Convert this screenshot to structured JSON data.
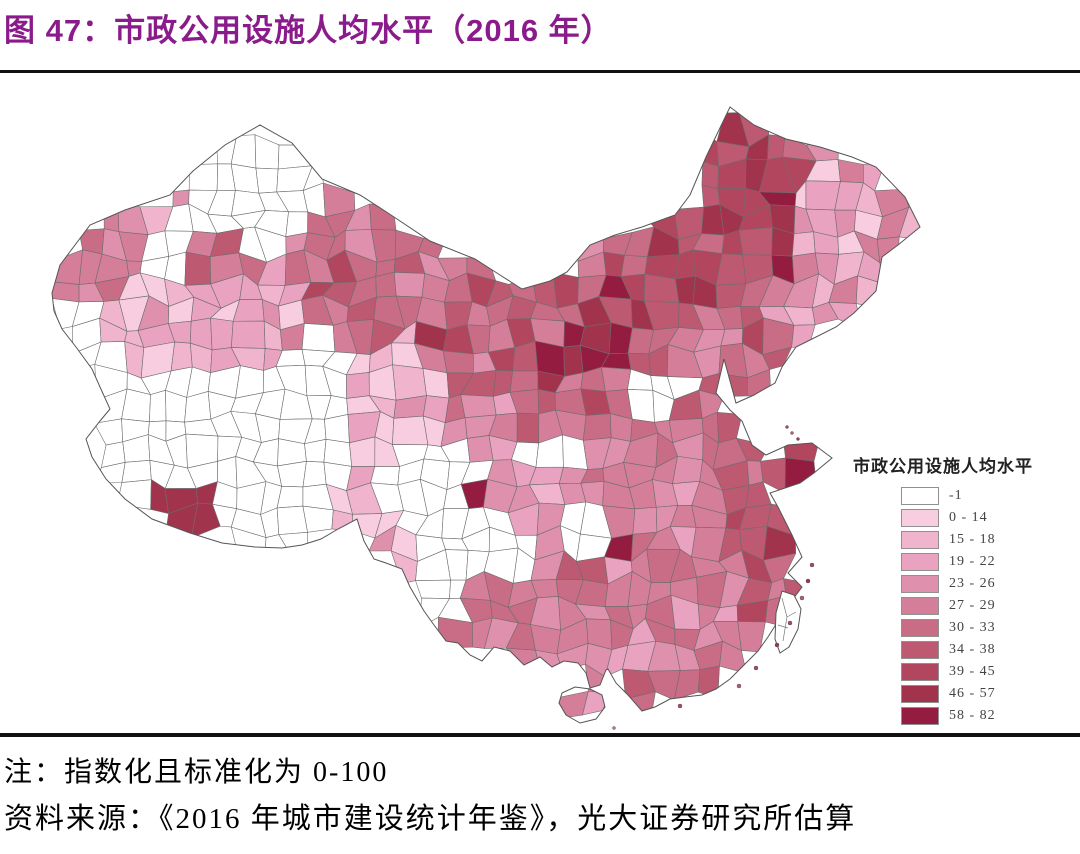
{
  "title": "图 47：市政公用设施人均水平（2016 年）",
  "title_color": "#8A1B8A",
  "notes": {
    "note1": "注：指数化且标准化为 0-100",
    "note2": "资料来源：《2016 年城市建设统计年鉴》，光大证券研究所估算"
  },
  "chart_data": {
    "type": "heatmap",
    "subtype": "choropleth-map",
    "geography": "China, prefecture-level regions",
    "year": "2016",
    "title": "市政公用设施人均水平（2016 年）",
    "legend": {
      "title": "市政公用设施人均水平",
      "position": "right",
      "classes": [
        {
          "label": "-1",
          "color": "#FFFFFF"
        },
        {
          "label": "0 - 14",
          "color": "#F8CDDF"
        },
        {
          "label": "15 - 18",
          "color": "#F1B4CD"
        },
        {
          "label": "19 - 22",
          "color": "#E9A2BF"
        },
        {
          "label": "23 - 26",
          "color": "#DF90AC"
        },
        {
          "label": "27 - 29",
          "color": "#D47E99"
        },
        {
          "label": "30 - 33",
          "color": "#C96C85"
        },
        {
          "label": "34 - 38",
          "color": "#BD5971"
        },
        {
          "label": "39 - 45",
          "color": "#B1465E"
        },
        {
          "label": "46 - 57",
          "color": "#A2334D"
        },
        {
          "label": "58 - 82",
          "color": "#951C41"
        }
      ]
    },
    "map": {
      "cell_size": 23,
      "border_color": "#6d6d6d",
      "outline_color": "#555555",
      "mainland": [
        [
          30,
          170
        ],
        [
          60,
          130
        ],
        [
          95,
          115
        ],
        [
          140,
          100
        ],
        [
          163,
          76
        ],
        [
          195,
          50
        ],
        [
          230,
          30
        ],
        [
          262,
          48
        ],
        [
          292,
          84
        ],
        [
          330,
          100
        ],
        [
          358,
          118
        ],
        [
          400,
          146
        ],
        [
          445,
          164
        ],
        [
          470,
          180
        ],
        [
          492,
          194
        ],
        [
          520,
          186
        ],
        [
          537,
          177
        ],
        [
          560,
          150
        ],
        [
          585,
          140
        ],
        [
          612,
          132
        ],
        [
          645,
          120
        ],
        [
          660,
          100
        ],
        [
          676,
          62
        ],
        [
          700,
          12
        ],
        [
          724,
          30
        ],
        [
          756,
          44
        ],
        [
          790,
          52
        ],
        [
          822,
          62
        ],
        [
          846,
          72
        ],
        [
          875,
          102
        ],
        [
          890,
          132
        ],
        [
          868,
          150
        ],
        [
          852,
          162
        ],
        [
          846,
          196
        ],
        [
          824,
          218
        ],
        [
          806,
          232
        ],
        [
          786,
          242
        ],
        [
          766,
          252
        ],
        [
          752,
          272
        ],
        [
          745,
          288
        ],
        [
          724,
          300
        ],
        [
          706,
          308
        ],
        [
          700,
          286
        ],
        [
          694,
          264
        ],
        [
          686,
          298
        ],
        [
          700,
          315
        ],
        [
          712,
          326
        ],
        [
          722,
          350
        ],
        [
          736,
          360
        ],
        [
          758,
          350
        ],
        [
          782,
          348
        ],
        [
          802,
          363
        ],
        [
          784,
          378
        ],
        [
          770,
          388
        ],
        [
          752,
          394
        ],
        [
          740,
          398
        ],
        [
          748,
          412
        ],
        [
          762,
          440
        ],
        [
          772,
          462
        ],
        [
          758,
          478
        ],
        [
          772,
          492
        ],
        [
          760,
          508
        ],
        [
          748,
          526
        ],
        [
          738,
          542
        ],
        [
          728,
          556
        ],
        [
          712,
          572
        ],
        [
          700,
          584
        ],
        [
          686,
          594
        ],
        [
          672,
          600
        ],
        [
          655,
          602
        ],
        [
          640,
          604
        ],
        [
          625,
          612
        ],
        [
          612,
          616
        ],
        [
          598,
          600
        ],
        [
          586,
          588
        ],
        [
          578,
          574
        ],
        [
          576,
          575
        ],
        [
          570,
          590
        ],
        [
          560,
          593
        ],
        [
          556,
          578
        ],
        [
          548,
          568
        ],
        [
          534,
          566
        ],
        [
          522,
          572
        ],
        [
          510,
          562
        ],
        [
          494,
          570
        ],
        [
          480,
          556
        ],
        [
          464,
          552
        ],
        [
          452,
          566
        ],
        [
          440,
          560
        ],
        [
          428,
          548
        ],
        [
          416,
          546
        ],
        [
          404,
          530
        ],
        [
          394,
          516
        ],
        [
          380,
          492
        ],
        [
          372,
          474
        ],
        [
          356,
          468
        ],
        [
          344,
          464
        ],
        [
          334,
          446
        ],
        [
          327,
          424
        ],
        [
          308,
          434
        ],
        [
          291,
          444
        ],
        [
          272,
          450
        ],
        [
          252,
          453
        ],
        [
          225,
          452
        ],
        [
          192,
          448
        ],
        [
          160,
          438
        ],
        [
          122,
          424
        ],
        [
          95,
          404
        ],
        [
          76,
          384
        ],
        [
          62,
          362
        ],
        [
          56,
          344
        ],
        [
          70,
          326
        ],
        [
          80,
          314
        ],
        [
          70,
          292
        ],
        [
          62,
          274
        ],
        [
          46,
          252
        ],
        [
          32,
          234
        ],
        [
          24,
          216
        ],
        [
          22,
          198
        ],
        [
          26,
          184
        ]
      ],
      "hainan": [
        [
          532,
          598
        ],
        [
          545,
          592
        ],
        [
          560,
          594
        ],
        [
          572,
          600
        ],
        [
          575,
          612
        ],
        [
          566,
          624
        ],
        [
          550,
          628
        ],
        [
          536,
          620
        ],
        [
          529,
          608
        ]
      ],
      "taiwan": [
        [
          752,
          496
        ],
        [
          764,
          500
        ],
        [
          771,
          514
        ],
        [
          768,
          534
        ],
        [
          759,
          552
        ],
        [
          750,
          558
        ],
        [
          745,
          544
        ],
        [
          746,
          518
        ]
      ],
      "taiwan_lines": [
        [
          [
            752,
            503
          ],
          [
            757,
            522
          ],
          [
            753,
            546
          ]
        ],
        [
          [
            757,
            522
          ],
          [
            766,
            517
          ]
        ],
        [
          [
            748,
            530
          ],
          [
            758,
            533
          ]
        ]
      ],
      "islands": [
        [
          782,
          470,
          2,
          8
        ],
        [
          778,
          486,
          2,
          9
        ],
        [
          772,
          503,
          2,
          7
        ],
        [
          760,
          528,
          2,
          8
        ],
        [
          747,
          550,
          2,
          9
        ],
        [
          726,
          573,
          2,
          8
        ],
        [
          709,
          591,
          2,
          7
        ],
        [
          650,
          611,
          2,
          8
        ],
        [
          757,
          332,
          1.5,
          8
        ],
        [
          762,
          338,
          1.5,
          7
        ],
        [
          768,
          344,
          1.5,
          9
        ],
        [
          584,
          633,
          1.5,
          6
        ]
      ],
      "zone_format": "[name, x, y, radius, class_index]",
      "zones": [
        [
          "altay-white",
          205,
          95,
          80,
          0
        ],
        [
          "tacheng-light",
          148,
          100,
          22,
          2
        ],
        [
          "karamay-dark",
          205,
          112,
          13,
          10
        ],
        [
          "bole-light",
          118,
          132,
          16,
          3
        ],
        [
          "ili-medium",
          55,
          160,
          40,
          5
        ],
        [
          "urumqi-changji",
          195,
          158,
          34,
          6
        ],
        [
          "turpan-light",
          248,
          185,
          24,
          3
        ],
        [
          "hami",
          312,
          172,
          55,
          6
        ],
        [
          "aksu-light",
          130,
          248,
          50,
          2
        ],
        [
          "korla-light",
          218,
          228,
          42,
          3
        ],
        [
          "kashgar-hotan-white",
          92,
          315,
          78,
          0
        ],
        [
          "qiemo-white",
          272,
          318,
          60,
          0
        ],
        [
          "qaidam-light",
          352,
          315,
          48,
          2
        ],
        [
          "yushu-white",
          398,
          398,
          48,
          0
        ],
        [
          "qinghai-east",
          465,
          330,
          32,
          4
        ],
        [
          "gansu-corridor",
          458,
          272,
          40,
          6
        ],
        [
          "jiayuguan-dark",
          420,
          243,
          14,
          9
        ],
        [
          "alxa",
          498,
          215,
          45,
          6
        ],
        [
          "lanzhou",
          520,
          322,
          24,
          6
        ],
        [
          "gansu-south-white",
          520,
          356,
          24,
          0
        ],
        [
          "ningxia",
          555,
          302,
          20,
          6
        ],
        [
          "ordos-wuhai-dark",
          535,
          256,
          28,
          10
        ],
        [
          "baotou-dark",
          592,
          212,
          22,
          9
        ],
        [
          "hohhot",
          628,
          248,
          18,
          7
        ],
        [
          "xilingol-dark",
          642,
          162,
          52,
          8
        ],
        [
          "xingan-dark",
          672,
          150,
          32,
          8
        ],
        [
          "hulunbuir-dark",
          697,
          118,
          55,
          8
        ],
        [
          "mongolia-border",
          600,
          150,
          40,
          6
        ],
        [
          "heihe-dark",
          742,
          82,
          32,
          8
        ],
        [
          "heilongjiang-light",
          828,
          108,
          58,
          3
        ],
        [
          "jiamusi",
          858,
          140,
          24,
          5
        ],
        [
          "harbin",
          790,
          160,
          25,
          4
        ],
        [
          "jilin-light",
          795,
          222,
          42,
          3
        ],
        [
          "changchun",
          778,
          215,
          14,
          7
        ],
        [
          "tongliao",
          697,
          228,
          36,
          6
        ],
        [
          "liaoning",
          735,
          275,
          38,
          6
        ],
        [
          "shenyang",
          745,
          263,
          11,
          8
        ],
        [
          "beijing-tianjin",
          700,
          318,
          28,
          7
        ],
        [
          "hebei",
          678,
          345,
          38,
          6
        ],
        [
          "shanxi",
          643,
          352,
          38,
          5
        ],
        [
          "taiyuan",
          643,
          345,
          11,
          8
        ],
        [
          "datong",
          655,
          310,
          14,
          7
        ],
        [
          "shaanbei-white",
          636,
          308,
          22,
          0
        ],
        [
          "shaanxi",
          610,
          390,
          38,
          5
        ],
        [
          "xian",
          616,
          404,
          11,
          8
        ],
        [
          "henan",
          660,
          415,
          42,
          5
        ],
        [
          "zhengzhou",
          672,
          408,
          11,
          8
        ],
        [
          "shandong-west",
          733,
          383,
          28,
          7
        ],
        [
          "shandong-peninsula",
          775,
          368,
          28,
          9
        ],
        [
          "yantai-dark",
          792,
          354,
          16,
          10
        ],
        [
          "jiangsu-north",
          722,
          432,
          30,
          7
        ],
        [
          "jiangsu-coast-dark",
          748,
          430,
          18,
          8
        ],
        [
          "shanghai-dark",
          765,
          460,
          16,
          9
        ],
        [
          "anhui",
          700,
          448,
          32,
          6
        ],
        [
          "hubei",
          640,
          462,
          42,
          5
        ],
        [
          "wuhan",
          655,
          470,
          11,
          8
        ],
        [
          "chongqing-dark",
          596,
          448,
          12,
          9
        ],
        [
          "sichuan-white-hole",
          548,
          430,
          26,
          0
        ],
        [
          "luzhou-dark",
          552,
          446,
          9,
          10
        ],
        [
          "sichuan-basin",
          518,
          420,
          42,
          4
        ],
        [
          "chengdu-dark",
          452,
          408,
          12,
          8
        ],
        [
          "west-sichuan-white",
          468,
          447,
          36,
          0
        ],
        [
          "changdu-light",
          340,
          430,
          38,
          2
        ],
        [
          "lhasa-dark",
          272,
          430,
          15,
          9
        ],
        [
          "tibet-central-white",
          240,
          415,
          55,
          0
        ],
        [
          "tibet-west-dark",
          145,
          478,
          75,
          10
        ],
        [
          "nyingchi-light",
          310,
          455,
          20,
          3
        ],
        [
          "yunnan-nw-white",
          415,
          500,
          25,
          0
        ],
        [
          "panzhihua-dark",
          424,
          560,
          12,
          9
        ],
        [
          "kunming",
          490,
          538,
          16,
          7
        ],
        [
          "yunnan",
          465,
          550,
          55,
          5
        ],
        [
          "guizhou",
          565,
          520,
          40,
          6
        ],
        [
          "guangxi",
          558,
          572,
          48,
          5
        ],
        [
          "hunan",
          618,
          522,
          42,
          5
        ],
        [
          "jiangxi",
          668,
          515,
          40,
          5
        ],
        [
          "zhejiang",
          733,
          496,
          30,
          6
        ],
        [
          "wenzhou-dark",
          748,
          520,
          12,
          8
        ],
        [
          "fujian",
          706,
          550,
          36,
          6
        ],
        [
          "xiamen-dark",
          700,
          582,
          13,
          8
        ],
        [
          "guangdong",
          640,
          585,
          40,
          6
        ],
        [
          "pearl-delta-dark",
          636,
          600,
          16,
          8
        ],
        [
          "leizhou",
          560,
          608,
          20,
          4
        ],
        [
          "hainan-island",
          556,
          602,
          40,
          4
        ]
      ]
    }
  }
}
